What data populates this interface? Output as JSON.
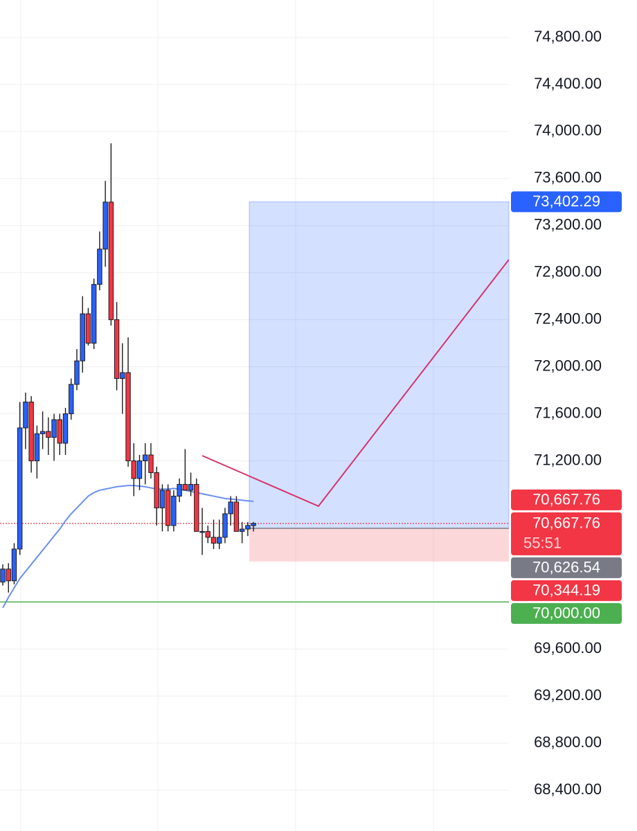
{
  "chart_data": {
    "type": "candlestick",
    "categories": [
      null,
      null,
      null,
      null,
      null,
      null,
      null,
      null,
      null,
      null,
      null,
      null,
      null,
      null,
      null,
      null,
      null,
      null,
      null,
      null,
      null,
      null,
      null,
      null,
      null,
      null,
      null,
      null,
      null,
      null,
      null,
      null,
      null,
      null,
      null,
      null,
      null,
      null,
      null,
      null,
      null,
      null,
      null,
      null,
      null
    ],
    "open": [
      70170,
      70280,
      70180,
      70450,
      71480,
      71700,
      71200,
      71430,
      71450,
      71400,
      71550,
      71350,
      71600,
      71850,
      72050,
      72450,
      72200,
      72700,
      73000,
      73400,
      72400,
      71900,
      71950,
      71200,
      71050,
      71200,
      71250,
      71100,
      70800,
      70950,
      70650,
      70900,
      71000,
      70950,
      71000,
      70600,
      70600,
      70550,
      70500,
      70550,
      70750,
      70850,
      70600,
      70620,
      70650
    ],
    "high": [
      70320,
      70330,
      70500,
      71700,
      71780,
      71750,
      71500,
      71620,
      71570,
      71600,
      71600,
      71650,
      71900,
      72150,
      72600,
      72500,
      72750,
      73150,
      73580,
      73900,
      72550,
      72200,
      72250,
      71350,
      71250,
      71350,
      71350,
      71150,
      71000,
      71000,
      70950,
      71050,
      71300,
      71100,
      71050,
      70800,
      70650,
      70700,
      70700,
      70800,
      70900,
      70900,
      70680,
      70680,
      70680
    ],
    "low": [
      70140,
      70080,
      70150,
      70400,
      71300,
      71100,
      71050,
      71300,
      71250,
      71200,
      71250,
      71250,
      71550,
      71800,
      71950,
      72180,
      72150,
      72650,
      72850,
      72350,
      71800,
      71600,
      71150,
      70900,
      70950,
      71000,
      71050,
      70650,
      70600,
      70600,
      70600,
      70850,
      70950,
      70900,
      70600,
      70400,
      70500,
      70450,
      70450,
      70500,
      70650,
      70600,
      70500,
      70560,
      70600
    ],
    "close": [
      70280,
      70180,
      70450,
      71480,
      71700,
      71200,
      71430,
      71450,
      71400,
      71550,
      71350,
      71600,
      71850,
      72050,
      72450,
      72200,
      72700,
      73000,
      73400,
      72400,
      71900,
      71950,
      71200,
      71050,
      71200,
      71250,
      71100,
      70800,
      70950,
      70650,
      70900,
      71000,
      70950,
      71000,
      70600,
      70600,
      70550,
      70500,
      70550,
      70750,
      70850,
      70600,
      70620,
      70650,
      70668
    ],
    "up_color": "#2962ff",
    "down_color": "#f23645",
    "ma": {
      "color": "#6b8ef0",
      "values": [
        69950,
        70040,
        70120,
        70200,
        70260,
        70320,
        70380,
        70440,
        70500,
        70560,
        70620,
        70690,
        70750,
        70800,
        70850,
        70900,
        70930,
        70950,
        70960,
        70970,
        70980,
        70985,
        70990,
        70990,
        70985,
        70980,
        70970,
        70960,
        70960,
        70960,
        70965,
        70960,
        70950,
        70940,
        70930,
        70920,
        70910,
        70900,
        70890,
        70880,
        70875,
        70870,
        70865,
        70860,
        70856
      ]
    },
    "position": {
      "entry": 70626.54,
      "target": 73402.29,
      "stop": 70344.19
    },
    "projection": {
      "color": "#d6336c",
      "x": [
        35,
        55.4,
        88.8
      ],
      "values": [
        71244,
        70815,
        72910
      ]
    },
    "current_price": 70667.76,
    "support_line": {
      "value": 70000,
      "color": "#4caf50"
    },
    "ylim": [
      68053,
      75118
    ],
    "yticks": [
      {
        "value": 74800,
        "label": "74,800.00"
      },
      {
        "value": 74400,
        "label": "74,400.00"
      },
      {
        "value": 74000,
        "label": "74,000.00"
      },
      {
        "value": 73600,
        "label": "73,600.00"
      },
      {
        "value": 73200,
        "label": "73,200.00"
      },
      {
        "value": 72800,
        "label": "72,800.00"
      },
      {
        "value": 72400,
        "label": "72,400.00"
      },
      {
        "value": 72000,
        "label": "72,000.00"
      },
      {
        "value": 71600,
        "label": "71,600.00"
      },
      {
        "value": 71200,
        "label": "71,200.00"
      },
      {
        "value": 69600,
        "label": "69,600.00"
      },
      {
        "value": 69200,
        "label": "69,200.00"
      },
      {
        "value": 68800,
        "label": "68,800.00"
      },
      {
        "value": 68400,
        "label": "68,400.00"
      }
    ],
    "price_tags": [
      {
        "value": 73402.29,
        "label": "73,402.29",
        "color": "#2962ff"
      },
      {
        "value": 70667.76,
        "label": "70,667.76",
        "color": "#f23645"
      },
      {
        "value": 70667.76,
        "label": "70,667.76",
        "sublabel": "55:51",
        "color": "#f23645"
      },
      {
        "value": 70626.54,
        "label": "70,626.54",
        "color": "#787b86"
      },
      {
        "value": 70344.19,
        "label": "70,344.19",
        "color": "#f23645"
      },
      {
        "value": 70000,
        "label": "70,000.00",
        "color": "#4caf50"
      }
    ],
    "grid": true
  }
}
